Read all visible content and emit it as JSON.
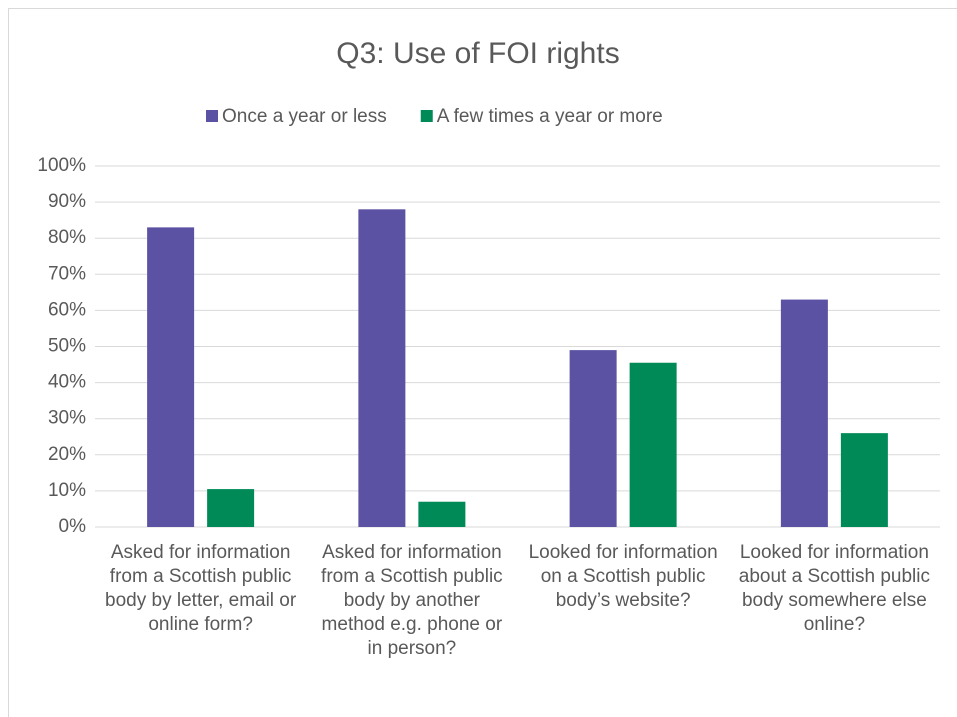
{
  "chart_data": {
    "type": "bar",
    "title": "Q3: Use of FOI rights",
    "categories": [
      "Asked for information from a Scottish public body by letter, email or online form?",
      "Asked for information from a Scottish public body by another method e.g. phone or in person?",
      "Looked for information on a Scottish public body’s website?",
      "Looked for information about a Scottish public body somewhere else online?"
    ],
    "series": [
      {
        "name": "Once a year or less",
        "color": "#5b52a3",
        "values": [
          83,
          88,
          49,
          63
        ]
      },
      {
        "name": "A few times a year or more",
        "color": "#008a57",
        "values": [
          10.5,
          7,
          45.5,
          26
        ]
      }
    ],
    "ylim": [
      0,
      100
    ],
    "yticks": [
      {
        "value": 0,
        "label": "0%"
      },
      {
        "value": 10,
        "label": "10%"
      },
      {
        "value": 20,
        "label": "20%"
      },
      {
        "value": 30,
        "label": "30%"
      },
      {
        "value": 40,
        "label": "40%"
      },
      {
        "value": 50,
        "label": "50%"
      },
      {
        "value": 60,
        "label": "60%"
      },
      {
        "value": 70,
        "label": "70%"
      },
      {
        "value": 80,
        "label": "80%"
      },
      {
        "value": 90,
        "label": "90%"
      },
      {
        "value": 100,
        "label": "100%"
      }
    ],
    "grid": true,
    "legend": "top"
  }
}
